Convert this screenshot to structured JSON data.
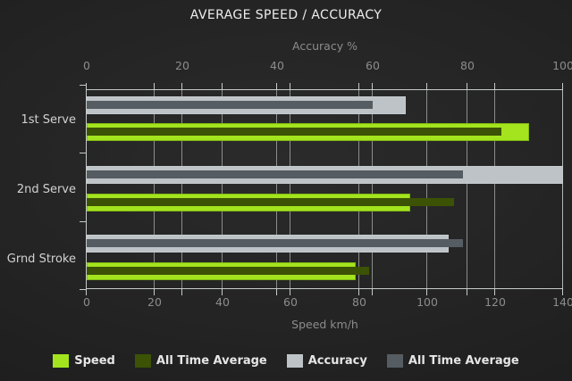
{
  "chart_data": {
    "type": "bar",
    "orientation": "horizontal",
    "title": "AVERAGE SPEED / ACCURACY",
    "categories": [
      "1st Serve",
      "2nd Serve",
      "Grnd Stroke"
    ],
    "axis_top": {
      "label": "Accuracy %",
      "range": [
        0,
        100
      ],
      "ticks": [
        0,
        20,
        40,
        60,
        80,
        100
      ]
    },
    "axis_bottom": {
      "label": "Speed km/h",
      "range": [
        0,
        140
      ],
      "ticks": [
        0,
        20,
        40,
        60,
        80,
        100,
        120,
        140
      ]
    },
    "series": [
      {
        "name": "Speed",
        "axis": "bottom",
        "color": "#a3e41e",
        "values": [
          130,
          95,
          79
        ]
      },
      {
        "name": "All Time Average",
        "axis": "bottom",
        "color": "#3c5205",
        "values": [
          122,
          108,
          83
        ]
      },
      {
        "name": "Accuracy",
        "axis": "top",
        "color": "#bdc3c7",
        "values": [
          67,
          100,
          76
        ]
      },
      {
        "name": "All Time Average",
        "axis": "top",
        "color": "#555c62",
        "values": [
          60,
          79,
          79
        ]
      }
    ],
    "legend": [
      {
        "label": "Speed",
        "color": "#a3e41e"
      },
      {
        "label": "All Time Average",
        "color": "#3c5205"
      },
      {
        "label": "Accuracy",
        "color": "#bdc3c7"
      },
      {
        "label": "All Time Average",
        "color": "#555c62"
      }
    ],
    "grid": true,
    "legend_position": "bottom",
    "background": "#232323"
  }
}
